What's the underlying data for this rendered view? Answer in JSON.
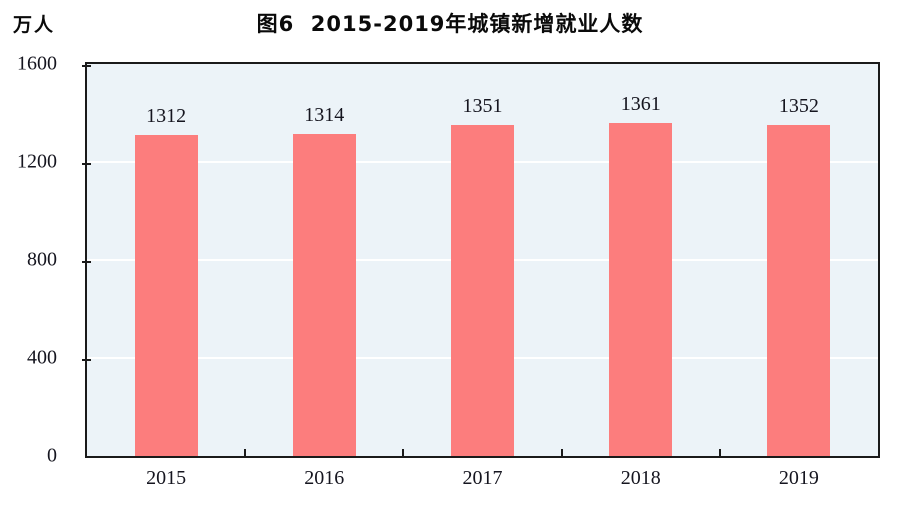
{
  "chart_data": {
    "type": "bar",
    "title": "图6  2015-2019年城镇新增就业人数",
    "unit_label": "万人",
    "categories": [
      "2015",
      "2016",
      "2017",
      "2018",
      "2019"
    ],
    "values": [
      1312,
      1314,
      1351,
      1361,
      1352
    ],
    "ylim": [
      0,
      1600
    ],
    "yticks": [
      0,
      400,
      800,
      1200,
      1600
    ],
    "grid": true,
    "legend_position": "none",
    "colors": {
      "bar_fill": "#FC7D7D",
      "plot_background": "#ECF3F8",
      "gridline": "#FFFFFF",
      "axis": "#1A1A1A",
      "text": "#15151F",
      "title_text": "#0A0A0A"
    }
  }
}
